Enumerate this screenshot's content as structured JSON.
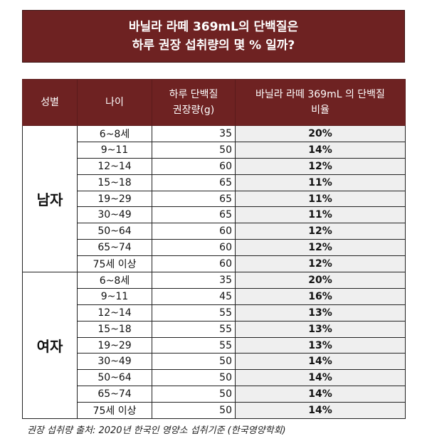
{
  "title": {
    "line1": "바닐라 라떼 369mL의 단백질은",
    "line2": "하루 권장 섭취량의 몇 % 일까?"
  },
  "table": {
    "headers": {
      "gender": "성별",
      "age": "나이",
      "recommended_line1": "하루 단백질",
      "recommended_line2": "권장량(g)",
      "ratio_line1": "바닐라 라떼 369mL 의 단백질",
      "ratio_line2": "비율"
    },
    "groups": [
      {
        "gender": "남자",
        "rows": [
          {
            "age": "6~8세",
            "amount": "35",
            "percent": "20%"
          },
          {
            "age": "9~11",
            "amount": "50",
            "percent": "14%"
          },
          {
            "age": "12~14",
            "amount": "60",
            "percent": "12%"
          },
          {
            "age": "15~18",
            "amount": "65",
            "percent": "11%"
          },
          {
            "age": "19~29",
            "amount": "65",
            "percent": "11%"
          },
          {
            "age": "30~49",
            "amount": "65",
            "percent": "11%"
          },
          {
            "age": "50~64",
            "amount": "60",
            "percent": "12%"
          },
          {
            "age": "65~74",
            "amount": "60",
            "percent": "12%"
          },
          {
            "age": "75세 이상",
            "amount": "60",
            "percent": "12%"
          }
        ]
      },
      {
        "gender": "여자",
        "rows": [
          {
            "age": "6~8세",
            "amount": "35",
            "percent": "20%"
          },
          {
            "age": "9~11",
            "amount": "45",
            "percent": "16%"
          },
          {
            "age": "12~14",
            "amount": "55",
            "percent": "13%"
          },
          {
            "age": "15~18",
            "amount": "55",
            "percent": "13%"
          },
          {
            "age": "19~29",
            "amount": "55",
            "percent": "13%"
          },
          {
            "age": "30~49",
            "amount": "50",
            "percent": "14%"
          },
          {
            "age": "50~64",
            "amount": "50",
            "percent": "14%"
          },
          {
            "age": "65~74",
            "amount": "50",
            "percent": "14%"
          },
          {
            "age": "75세 이상",
            "amount": "50",
            "percent": "14%"
          }
        ]
      }
    ]
  },
  "footnote": "권장 섭취량 출처: 2020년 한국인 영양소 섭취기준 (한국영양학회)",
  "colors": {
    "header_bg": "#6e2222",
    "percent_bg": "#efefef"
  }
}
